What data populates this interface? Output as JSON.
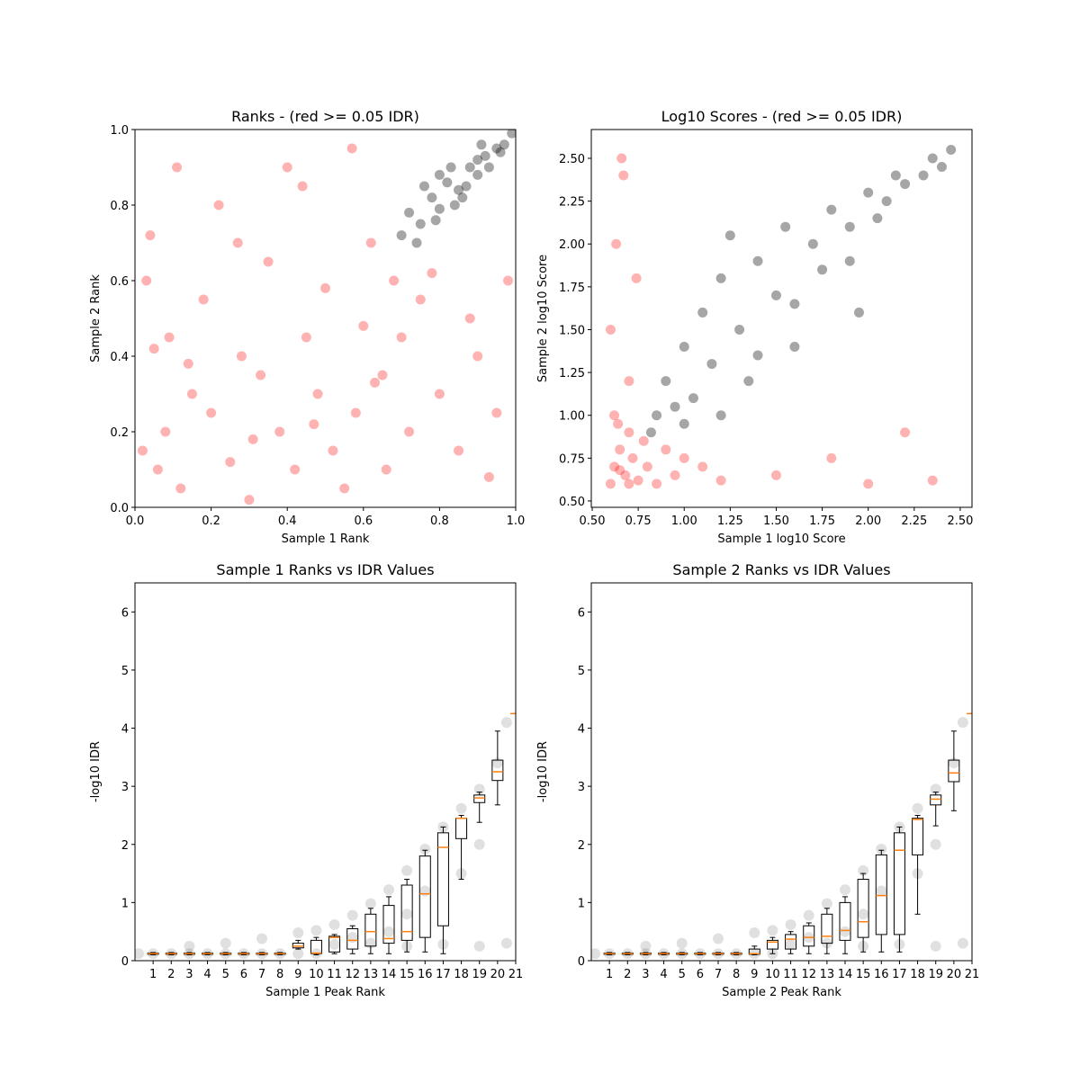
{
  "chart_data": [
    {
      "type": "scatter",
      "title": "Ranks - (red >= 0.05 IDR)",
      "xlabel": "Sample 1 Rank",
      "ylabel": "Sample 2 Rank",
      "xlim": [
        0,
        1
      ],
      "ylim": [
        0,
        1
      ],
      "xticks": [
        {
          "value": 0,
          "label": "0.0"
        },
        0.2,
        0.4,
        0.6,
        0.8,
        {
          "value": 1,
          "label": "1.0"
        }
      ],
      "yticks": [
        {
          "value": 0,
          "label": "0.0"
        },
        0.2,
        0.4,
        0.6,
        0.8,
        {
          "value": 1,
          "label": "1.0"
        }
      ],
      "series": [
        {
          "color": "red",
          "x": [
            0.02,
            0.05,
            0.08,
            0.03,
            0.06,
            0.09,
            0.04,
            0.12,
            0.15,
            0.18,
            0.2,
            0.22,
            0.25,
            0.28,
            0.3,
            0.33,
            0.35,
            0.38,
            0.4,
            0.42,
            0.45,
            0.48,
            0.5,
            0.52,
            0.55,
            0.58,
            0.6,
            0.62,
            0.65,
            0.68,
            0.7,
            0.72,
            0.75,
            0.8,
            0.85,
            0.9,
            0.95,
            0.98,
            0.11,
            0.27,
            0.44,
            0.57,
            0.66,
            0.14,
            0.31,
            0.47,
            0.63,
            0.78,
            0.88,
            0.93
          ],
          "y": [
            0.15,
            0.42,
            0.2,
            0.6,
            0.1,
            0.45,
            0.72,
            0.05,
            0.3,
            0.55,
            0.25,
            0.8,
            0.12,
            0.4,
            0.02,
            0.35,
            0.65,
            0.2,
            0.9,
            0.1,
            0.45,
            0.3,
            0.58,
            0.15,
            0.05,
            0.25,
            0.48,
            0.7,
            0.35,
            0.6,
            0.45,
            0.2,
            0.55,
            0.3,
            0.15,
            0.4,
            0.25,
            0.6,
            0.9,
            0.7,
            0.85,
            0.95,
            0.1,
            0.38,
            0.18,
            0.22,
            0.33,
            0.62,
            0.5,
            0.08
          ]
        },
        {
          "color": "black",
          "x": [
            0.7,
            0.72,
            0.75,
            0.78,
            0.8,
            0.82,
            0.85,
            0.88,
            0.9,
            0.92,
            0.95,
            0.97,
            0.99,
            0.76,
            0.8,
            0.84,
            0.87,
            0.9,
            0.93,
            0.96,
            0.74,
            0.79,
            0.83,
            0.86,
            0.91
          ],
          "y": [
            0.72,
            0.78,
            0.75,
            0.82,
            0.79,
            0.86,
            0.84,
            0.9,
            0.88,
            0.93,
            0.95,
            0.96,
            0.99,
            0.85,
            0.88,
            0.8,
            0.85,
            0.92,
            0.9,
            0.94,
            0.7,
            0.76,
            0.9,
            0.82,
            0.96
          ]
        }
      ]
    },
    {
      "type": "scatter",
      "title": "Log10 Scores - (red >= 0.05 IDR)",
      "xlabel": "Sample 1 log10 Score",
      "ylabel": "Sample 2 log10 Score",
      "xlim": [
        0.495,
        2.564
      ],
      "ylim": [
        0.463,
        2.668
      ],
      "xticks": [
        {
          "value": 0.5,
          "label": "0.50"
        },
        0.75,
        {
          "value": 1,
          "label": "1.00"
        },
        1.25,
        {
          "value": 1.5,
          "label": "1.50"
        },
        1.75,
        {
          "value": 2,
          "label": "2.00"
        },
        2.25,
        {
          "value": 2.5,
          "label": "2.50"
        }
      ],
      "yticks": [
        {
          "value": 0.5,
          "label": "0.50"
        },
        0.75,
        {
          "value": 1,
          "label": "1.00"
        },
        1.25,
        {
          "value": 1.5,
          "label": "1.50"
        },
        1.75,
        {
          "value": 2,
          "label": "2.00"
        },
        2.25,
        {
          "value": 2.5,
          "label": "2.50"
        }
      ],
      "series": [
        {
          "color": "red",
          "x": [
            0.6,
            0.62,
            0.65,
            0.68,
            0.7,
            0.72,
            0.75,
            0.78,
            0.8,
            0.85,
            0.9,
            0.95,
            1.0,
            1.1,
            1.2,
            0.6,
            0.63,
            0.67,
            0.7,
            0.74,
            0.66,
            0.62,
            0.64,
            1.5,
            1.8,
            2.0,
            2.2,
            2.35,
            0.7,
            0.65
          ],
          "y": [
            0.6,
            0.7,
            0.8,
            0.65,
            0.9,
            0.75,
            0.62,
            0.85,
            0.7,
            0.6,
            0.8,
            0.65,
            0.75,
            0.7,
            0.62,
            1.5,
            2.0,
            2.4,
            1.2,
            1.8,
            2.5,
            1.0,
            0.95,
            0.65,
            0.75,
            0.6,
            0.9,
            0.62,
            0.6,
            0.68
          ]
        },
        {
          "color": "black",
          "x": [
            0.82,
            0.85,
            0.9,
            0.95,
            1.0,
            1.05,
            1.1,
            1.15,
            1.2,
            1.3,
            1.35,
            1.4,
            1.5,
            1.55,
            1.6,
            1.7,
            1.75,
            1.8,
            1.9,
            1.95,
            2.0,
            2.1,
            2.15,
            2.2,
            2.3,
            2.35,
            2.4,
            2.45,
            1.0,
            1.2,
            1.4,
            1.6,
            1.9,
            1.25,
            2.05
          ],
          "y": [
            0.9,
            1.0,
            1.2,
            1.05,
            1.4,
            1.1,
            1.6,
            1.3,
            1.8,
            1.5,
            1.2,
            1.9,
            1.7,
            2.1,
            1.4,
            2.0,
            1.85,
            2.2,
            2.1,
            1.6,
            2.3,
            2.25,
            2.4,
            2.35,
            2.4,
            2.5,
            2.45,
            2.55,
            0.95,
            1.0,
            1.35,
            1.65,
            1.9,
            2.05,
            2.15
          ]
        }
      ]
    },
    {
      "type": "box",
      "title": "Sample 1 Ranks vs IDR Values",
      "xlabel": "Sample 1 Peak Rank",
      "ylabel": "-log10 IDR",
      "xlim": [
        0,
        21
      ],
      "ylim": [
        0,
        6.5
      ],
      "xticks": [
        1,
        2,
        3,
        4,
        5,
        6,
        7,
        8,
        9,
        10,
        11,
        12,
        13,
        14,
        15,
        16,
        17,
        18,
        19,
        20,
        21
      ],
      "yticks": [
        0,
        1,
        2,
        3,
        4,
        5,
        6
      ],
      "series": [
        {
          "color": "black",
          "x": [
            0.2,
            1,
            2,
            3,
            4,
            5,
            6,
            7,
            8,
            9,
            10,
            3,
            5,
            7,
            9,
            10,
            11,
            12,
            13,
            14,
            15,
            16,
            17,
            18,
            19,
            20,
            20.5,
            11,
            13,
            15,
            17,
            19,
            20.5,
            14,
            16,
            18,
            19,
            15,
            12
          ],
          "y": [
            0.12,
            0.12,
            0.12,
            0.12,
            0.12,
            0.12,
            0.12,
            0.12,
            0.12,
            0.12,
            0.12,
            0.25,
            0.3,
            0.38,
            0.48,
            0.52,
            0.62,
            0.78,
            0.98,
            1.22,
            1.55,
            1.92,
            2.3,
            2.62,
            2.95,
            3.4,
            4.1,
            0.28,
            0.3,
            0.25,
            0.28,
            0.25,
            0.3,
            0.5,
            1.2,
            1.5,
            2.0,
            0.8,
            0.4
          ]
        }
      ],
      "box_color": "black",
      "median_color": "#ff7f0e",
      "boxes": [
        {
          "x": 1,
          "whislo": 0.1,
          "q1": 0.11,
          "med": 0.12,
          "q3": 0.13,
          "whishi": 0.14
        },
        {
          "x": 2,
          "whislo": 0.1,
          "q1": 0.11,
          "med": 0.12,
          "q3": 0.13,
          "whishi": 0.14
        },
        {
          "x": 3,
          "whislo": 0.1,
          "q1": 0.11,
          "med": 0.12,
          "q3": 0.13,
          "whishi": 0.14
        },
        {
          "x": 4,
          "whislo": 0.1,
          "q1": 0.11,
          "med": 0.12,
          "q3": 0.13,
          "whishi": 0.14
        },
        {
          "x": 5,
          "whislo": 0.1,
          "q1": 0.11,
          "med": 0.12,
          "q3": 0.13,
          "whishi": 0.14
        },
        {
          "x": 6,
          "whislo": 0.1,
          "q1": 0.11,
          "med": 0.12,
          "q3": 0.13,
          "whishi": 0.14
        },
        {
          "x": 7,
          "whislo": 0.1,
          "q1": 0.11,
          "med": 0.12,
          "q3": 0.13,
          "whishi": 0.14
        },
        {
          "x": 8,
          "whislo": 0.1,
          "q1": 0.11,
          "med": 0.12,
          "q3": 0.13,
          "whishi": 0.14
        },
        {
          "x": 9,
          "whislo": 0.2,
          "q1": 0.22,
          "med": 0.25,
          "q3": 0.3,
          "whishi": 0.35
        },
        {
          "x": 10,
          "whislo": 0.1,
          "q1": 0.12,
          "med": 0.13,
          "q3": 0.35,
          "whishi": 0.4
        },
        {
          "x": 11,
          "whislo": 0.12,
          "q1": 0.15,
          "med": 0.4,
          "q3": 0.42,
          "whishi": 0.45
        },
        {
          "x": 12,
          "whislo": 0.12,
          "q1": 0.2,
          "med": 0.35,
          "q3": 0.55,
          "whishi": 0.6
        },
        {
          "x": 13,
          "whislo": 0.12,
          "q1": 0.25,
          "med": 0.5,
          "q3": 0.8,
          "whishi": 0.9
        },
        {
          "x": 14,
          "whislo": 0.12,
          "q1": 0.3,
          "med": 0.38,
          "q3": 0.95,
          "whishi": 1.1
        },
        {
          "x": 15,
          "whislo": 0.15,
          "q1": 0.35,
          "med": 0.5,
          "q3": 1.3,
          "whishi": 1.4
        },
        {
          "x": 16,
          "whislo": 0.15,
          "q1": 0.4,
          "med": 1.15,
          "q3": 1.8,
          "whishi": 1.9
        },
        {
          "x": 17,
          "whislo": 0.12,
          "q1": 0.6,
          "med": 1.95,
          "q3": 2.2,
          "whishi": 2.3
        },
        {
          "x": 18,
          "whislo": 1.4,
          "q1": 2.1,
          "med": 2.45,
          "q3": 2.45,
          "whishi": 2.5
        },
        {
          "x": 19,
          "whislo": 2.38,
          "q1": 2.72,
          "med": 2.8,
          "q3": 2.85,
          "whishi": 2.9
        },
        {
          "x": 20,
          "whislo": 2.68,
          "q1": 3.1,
          "med": 3.25,
          "q3": 3.45,
          "whishi": 3.95
        },
        {
          "x": 21,
          "whislo": 4.25,
          "q1": 4.25,
          "med": 4.25,
          "q3": 4.25,
          "whishi": 4.25
        }
      ]
    },
    {
      "type": "box",
      "title": "Sample 2 Ranks vs IDR Values",
      "xlabel": "Sample 2 Peak Rank",
      "ylabel": "-log10 IDR",
      "xlim": [
        0,
        21
      ],
      "ylim": [
        0,
        6.5
      ],
      "xticks": [
        1,
        2,
        3,
        4,
        5,
        6,
        7,
        8,
        9,
        10,
        11,
        12,
        13,
        14,
        15,
        16,
        17,
        18,
        19,
        20,
        21
      ],
      "yticks": [
        0,
        1,
        2,
        3,
        4,
        5,
        6
      ],
      "series": [
        {
          "color": "black",
          "x": [
            0.2,
            1,
            2,
            3,
            4,
            5,
            6,
            7,
            8,
            9,
            10,
            3,
            5,
            7,
            9,
            10,
            11,
            12,
            13,
            14,
            15,
            16,
            17,
            18,
            19,
            20,
            20.5,
            11,
            13,
            15,
            17,
            19,
            20.5,
            14,
            16,
            18,
            19,
            15,
            12
          ],
          "y": [
            0.12,
            0.12,
            0.12,
            0.12,
            0.12,
            0.12,
            0.12,
            0.12,
            0.12,
            0.12,
            0.12,
            0.25,
            0.3,
            0.38,
            0.48,
            0.52,
            0.62,
            0.78,
            0.98,
            1.22,
            1.55,
            1.92,
            2.3,
            2.62,
            2.95,
            3.4,
            4.1,
            0.28,
            0.3,
            0.25,
            0.28,
            0.25,
            0.3,
            0.5,
            1.2,
            1.5,
            2.0,
            0.8,
            0.4
          ]
        }
      ],
      "box_color": "black",
      "median_color": "#ff7f0e",
      "boxes": [
        {
          "x": 1,
          "whislo": 0.1,
          "q1": 0.11,
          "med": 0.12,
          "q3": 0.13,
          "whishi": 0.14
        },
        {
          "x": 2,
          "whislo": 0.1,
          "q1": 0.11,
          "med": 0.12,
          "q3": 0.13,
          "whishi": 0.14
        },
        {
          "x": 3,
          "whislo": 0.1,
          "q1": 0.11,
          "med": 0.12,
          "q3": 0.13,
          "whishi": 0.14
        },
        {
          "x": 4,
          "whislo": 0.1,
          "q1": 0.11,
          "med": 0.12,
          "q3": 0.13,
          "whishi": 0.14
        },
        {
          "x": 5,
          "whislo": 0.1,
          "q1": 0.11,
          "med": 0.12,
          "q3": 0.13,
          "whishi": 0.14
        },
        {
          "x": 6,
          "whislo": 0.1,
          "q1": 0.11,
          "med": 0.12,
          "q3": 0.13,
          "whishi": 0.14
        },
        {
          "x": 7,
          "whislo": 0.1,
          "q1": 0.11,
          "med": 0.12,
          "q3": 0.13,
          "whishi": 0.14
        },
        {
          "x": 8,
          "whislo": 0.1,
          "q1": 0.11,
          "med": 0.12,
          "q3": 0.13,
          "whishi": 0.14
        },
        {
          "x": 9,
          "whislo": 0.1,
          "q1": 0.11,
          "med": 0.12,
          "q3": 0.2,
          "whishi": 0.25
        },
        {
          "x": 10,
          "whislo": 0.12,
          "q1": 0.2,
          "med": 0.32,
          "q3": 0.35,
          "whishi": 0.4
        },
        {
          "x": 11,
          "whislo": 0.12,
          "q1": 0.2,
          "med": 0.37,
          "q3": 0.45,
          "whishi": 0.5
        },
        {
          "x": 12,
          "whislo": 0.12,
          "q1": 0.25,
          "med": 0.4,
          "q3": 0.6,
          "whishi": 0.65
        },
        {
          "x": 13,
          "whislo": 0.12,
          "q1": 0.3,
          "med": 0.42,
          "q3": 0.8,
          "whishi": 0.9
        },
        {
          "x": 14,
          "whislo": 0.12,
          "q1": 0.35,
          "med": 0.52,
          "q3": 1.0,
          "whishi": 1.1
        },
        {
          "x": 15,
          "whislo": 0.15,
          "q1": 0.4,
          "med": 0.67,
          "q3": 1.4,
          "whishi": 1.5
        },
        {
          "x": 16,
          "whislo": 0.15,
          "q1": 0.45,
          "med": 1.12,
          "q3": 1.82,
          "whishi": 1.9
        },
        {
          "x": 17,
          "whislo": 0.15,
          "q1": 0.45,
          "med": 1.9,
          "q3": 2.2,
          "whishi": 2.3
        },
        {
          "x": 18,
          "whislo": 0.8,
          "q1": 1.82,
          "med": 2.43,
          "q3": 2.45,
          "whishi": 2.5
        },
        {
          "x": 19,
          "whislo": 2.32,
          "q1": 2.68,
          "med": 2.78,
          "q3": 2.85,
          "whishi": 2.9
        },
        {
          "x": 20,
          "whislo": 2.58,
          "q1": 3.08,
          "med": 3.23,
          "q3": 3.45,
          "whishi": 3.95
        },
        {
          "x": 21,
          "whislo": 4.25,
          "q1": 4.25,
          "med": 4.25,
          "q3": 4.25,
          "whishi": 4.25
        }
      ]
    }
  ]
}
